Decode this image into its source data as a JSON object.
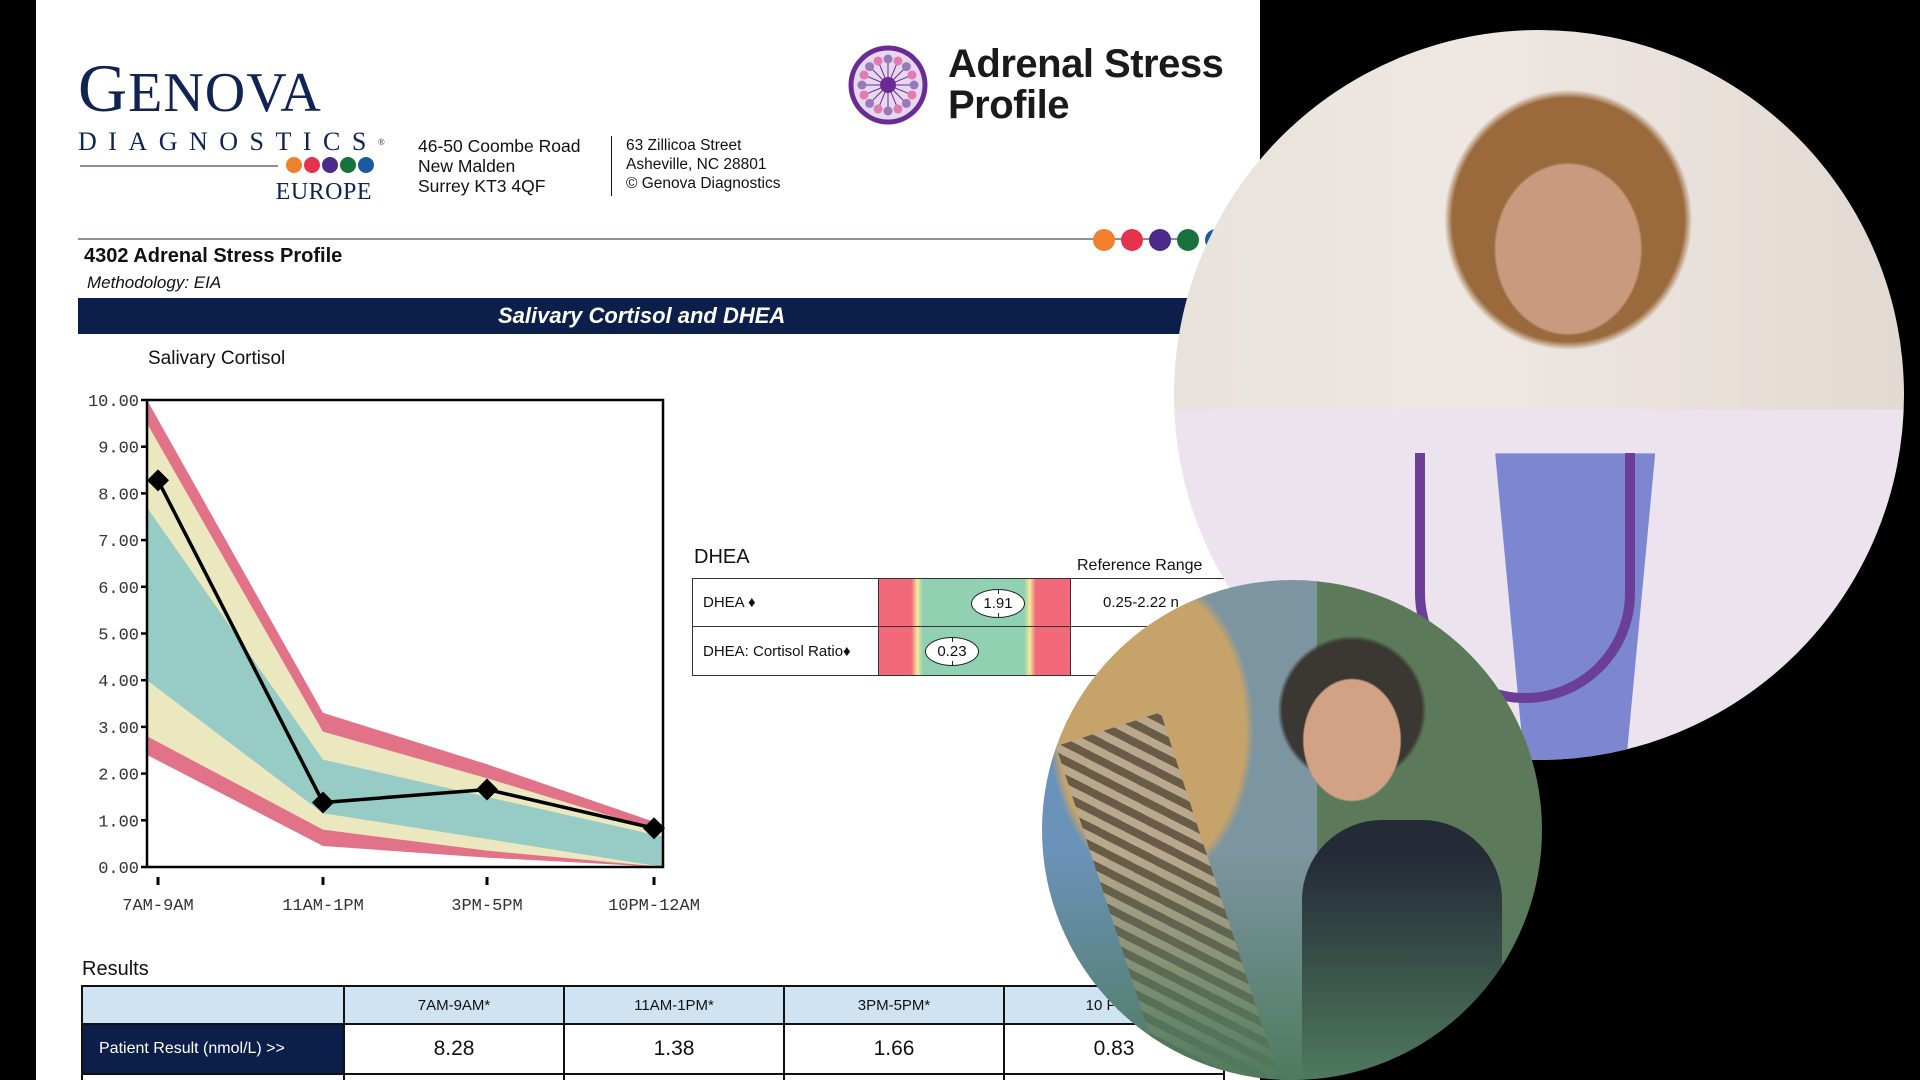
{
  "brand": {
    "genova": {
      "word_first": "G",
      "word_rest": "ENOVA",
      "subtitle": "DIAGNOSTICS",
      "registered": "®",
      "region": "EUROPE",
      "dot_colors": [
        "#f07f2e",
        "#e6334d",
        "#4b2a8c",
        "#17723b",
        "#1b5aa0"
      ]
    },
    "address_uk": [
      "46-50 Coombe Road",
      "New Malden",
      "Surrey KT3 4QF"
    ],
    "address_us": [
      "63 Zillicoa Street",
      "Asheville, NC  28801",
      "© Genova Diagnostics"
    ],
    "product": {
      "line1": "Adrenal Stress",
      "line2": "Profile",
      "emblem_color": "#6b2b95"
    }
  },
  "report": {
    "test_title": "4302 Adrenal Stress Profile",
    "methodology": "Methodology: EIA",
    "section_banner": "Salivary Cortisol and DHEA",
    "header_dot_colors": [
      "#f07f2e",
      "#e6334d",
      "#4b2a8c",
      "#17723b",
      "#1b5aa0"
    ]
  },
  "chart_data": {
    "type": "line",
    "title": "Salivary Cortisol",
    "xlabel": "",
    "ylabel": "",
    "categories": [
      "7AM-9AM",
      "11AM-1PM",
      "3PM-5PM",
      "10PM-12AM"
    ],
    "ylim": [
      0,
      10
    ],
    "yticks": [
      "0.00",
      "1.00",
      "2.00",
      "3.00",
      "4.00",
      "5.00",
      "6.00",
      "7.00",
      "8.00",
      "9.00",
      "10.00"
    ],
    "series": [
      {
        "name": "Patient Result (nmol/L)",
        "values": [
          8.28,
          1.38,
          1.66,
          0.83
        ],
        "marker": "diamond",
        "color": "#000000"
      }
    ],
    "reference_bands": {
      "outer_high": [
        10.0,
        3.3,
        2.2,
        0.9
      ],
      "inner_high": [
        9.5,
        2.9,
        1.9,
        0.75
      ],
      "optimal_high": [
        7.7,
        2.3,
        1.5,
        0.65
      ],
      "optimal_low": [
        4.0,
        1.15,
        0.6,
        0.0
      ],
      "inner_low": [
        2.8,
        0.8,
        0.35,
        0.0
      ],
      "outer_low": [
        2.4,
        0.45,
        0.2,
        0.0
      ],
      "colors": {
        "outer": "#e27287",
        "inner": "#ebe8c0",
        "optimal": "#97cbc5"
      }
    },
    "grid": false,
    "legend": "none"
  },
  "dhea": {
    "title": "DHEA",
    "reference_header": "Reference Range",
    "rows": [
      {
        "label": "DHEA ♦",
        "value": "1.91",
        "marker_pos": 0.62,
        "reference": "0.25-2.22 n"
      },
      {
        "label": "DHEA: Cortisol Ratio♦",
        "value": "0.23",
        "marker_pos": 0.38,
        "reference": ""
      }
    ]
  },
  "results": {
    "title": "Results",
    "columns": [
      "",
      "7AM-9AM*",
      "11AM-1PM*",
      "3PM-5PM*",
      "10 PM-1"
    ],
    "row_label": "Patient Result (nmol/L) >>",
    "values": [
      "8.28",
      "1.38",
      "1.66",
      "0.83"
    ]
  }
}
